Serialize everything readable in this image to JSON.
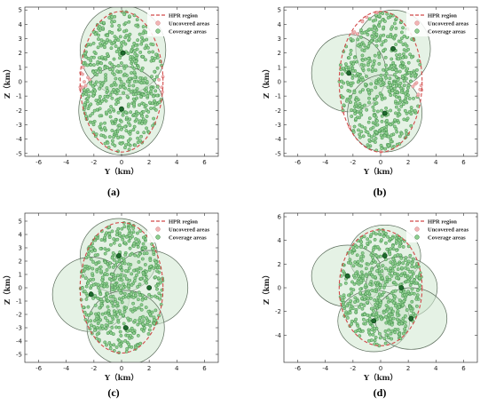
{
  "chart_data": [
    {
      "panel": "(a)",
      "type": "scatter",
      "xlabel": "Y（km）",
      "ylabel": "Z（km）",
      "xlim": [
        -7,
        7
      ],
      "ylim": [
        -5.2,
        5.2
      ],
      "xticks": [
        -6,
        -4,
        -2,
        0,
        2,
        4,
        6
      ],
      "yticks": [
        -5,
        -4,
        -3,
        -2,
        -1,
        0,
        1,
        2,
        3,
        4,
        5
      ],
      "legend": [
        "HPR region",
        "Uncovered areas",
        "Coverage areas"
      ],
      "legend_position": "top-right",
      "hpr_region": {
        "cx": 0,
        "cy": 0,
        "rx": 3.0,
        "ry": 4.9
      },
      "coverage_circles": [
        {
          "cx": 0.1,
          "cy": 2.2,
          "r": 3.1
        },
        {
          "cx": 0.0,
          "cy": -2.0,
          "r": 3.1
        }
      ],
      "stations": [
        [
          0.1,
          2.0
        ],
        [
          0.0,
          -1.9
        ]
      ],
      "point_count": 560
    },
    {
      "panel": "(b)",
      "type": "scatter",
      "xlabel": "Y（km）",
      "ylabel": "Z（km）",
      "xlim": [
        -7,
        7
      ],
      "ylim": [
        -5.2,
        5.2
      ],
      "xticks": [
        -6,
        -4,
        -2,
        0,
        2,
        4,
        6
      ],
      "yticks": [
        -5,
        -4,
        -3,
        -2,
        -1,
        0,
        1,
        2,
        3,
        4,
        5
      ],
      "legend": [
        "HPR region",
        "Uncovered areas",
        "Coverage areas"
      ],
      "legend_position": "top-right",
      "hpr_region": {
        "cx": 0,
        "cy": 0,
        "rx": 3.0,
        "ry": 4.9
      },
      "coverage_circles": [
        {
          "cx": 0.9,
          "cy": 2.3,
          "r": 2.7
        },
        {
          "cx": -2.3,
          "cy": 0.6,
          "r": 2.7
        },
        {
          "cx": 0.3,
          "cy": -2.2,
          "r": 2.7
        }
      ],
      "stations": [
        [
          0.9,
          2.3
        ],
        [
          -2.3,
          0.6
        ],
        [
          0.3,
          -2.2
        ]
      ],
      "point_count": 560
    },
    {
      "panel": "(c)",
      "type": "scatter",
      "xlabel": "Y（km）",
      "ylabel": "Z（km）",
      "xlim": [
        -7,
        7
      ],
      "ylim": [
        -5.6,
        5.6
      ],
      "xticks": [
        -6,
        -4,
        -2,
        0,
        2,
        4,
        6
      ],
      "yticks": [
        -5,
        -4,
        -3,
        -2,
        -1,
        0,
        1,
        2,
        3,
        4,
        5
      ],
      "legend": [
        "HPR region",
        "Uncovered areas",
        "Coverage areas"
      ],
      "legend_position": "top-right",
      "hpr_region": {
        "cx": 0,
        "cy": 0,
        "rx": 3.0,
        "ry": 4.9
      },
      "coverage_circles": [
        {
          "cx": -0.2,
          "cy": 2.4,
          "r": 2.8
        },
        {
          "cx": -2.2,
          "cy": -0.5,
          "r": 2.8
        },
        {
          "cx": 2.0,
          "cy": 0.0,
          "r": 2.8
        },
        {
          "cx": 0.3,
          "cy": -3.0,
          "r": 2.8
        }
      ],
      "stations": [
        [
          -0.2,
          2.4
        ],
        [
          -2.2,
          -0.5
        ],
        [
          2.0,
          0.0
        ],
        [
          0.3,
          -3.0
        ]
      ],
      "point_count": 560
    },
    {
      "panel": "(d)",
      "type": "scatter",
      "xlabel": "Y（km）",
      "ylabel": "Z（km）",
      "xlim": [
        -7,
        7
      ],
      "ylim": [
        -6.3,
        6.3
      ],
      "xticks": [
        -6,
        -4,
        -2,
        0,
        2,
        4,
        6
      ],
      "yticks": [
        -4,
        -2,
        0,
        2,
        4,
        6
      ],
      "legend": [
        "HPR region",
        "Uncovered areas",
        "Coverage areas"
      ],
      "legend_position": "top-right",
      "hpr_region": {
        "cx": 0,
        "cy": 0,
        "rx": 3.0,
        "ry": 4.9
      },
      "coverage_circles": [
        {
          "cx": 0.3,
          "cy": 2.7,
          "r": 2.6
        },
        {
          "cx": -2.4,
          "cy": 1.0,
          "r": 2.6
        },
        {
          "cx": 1.5,
          "cy": 0.0,
          "r": 2.6
        },
        {
          "cx": -0.5,
          "cy": -2.8,
          "r": 2.6
        },
        {
          "cx": 2.2,
          "cy": -2.6,
          "r": 2.6
        }
      ],
      "stations": [
        [
          0.3,
          2.7
        ],
        [
          -2.4,
          1.0
        ],
        [
          1.5,
          0.0
        ],
        [
          -0.5,
          -2.8
        ],
        [
          2.2,
          -2.6
        ]
      ],
      "point_count": 560
    }
  ],
  "colors": {
    "hpr_line": "#d24a4a",
    "uncovered_fill": "#f2b4b4",
    "uncovered_edge": "#cc7a7a",
    "coverage_fill": "#8fce8f",
    "coverage_edge": "#2f7d3a",
    "circle_fill": "#cfe8cf",
    "circle_edge": "#5a6b5a",
    "station_fill": "#1d6b2c"
  }
}
